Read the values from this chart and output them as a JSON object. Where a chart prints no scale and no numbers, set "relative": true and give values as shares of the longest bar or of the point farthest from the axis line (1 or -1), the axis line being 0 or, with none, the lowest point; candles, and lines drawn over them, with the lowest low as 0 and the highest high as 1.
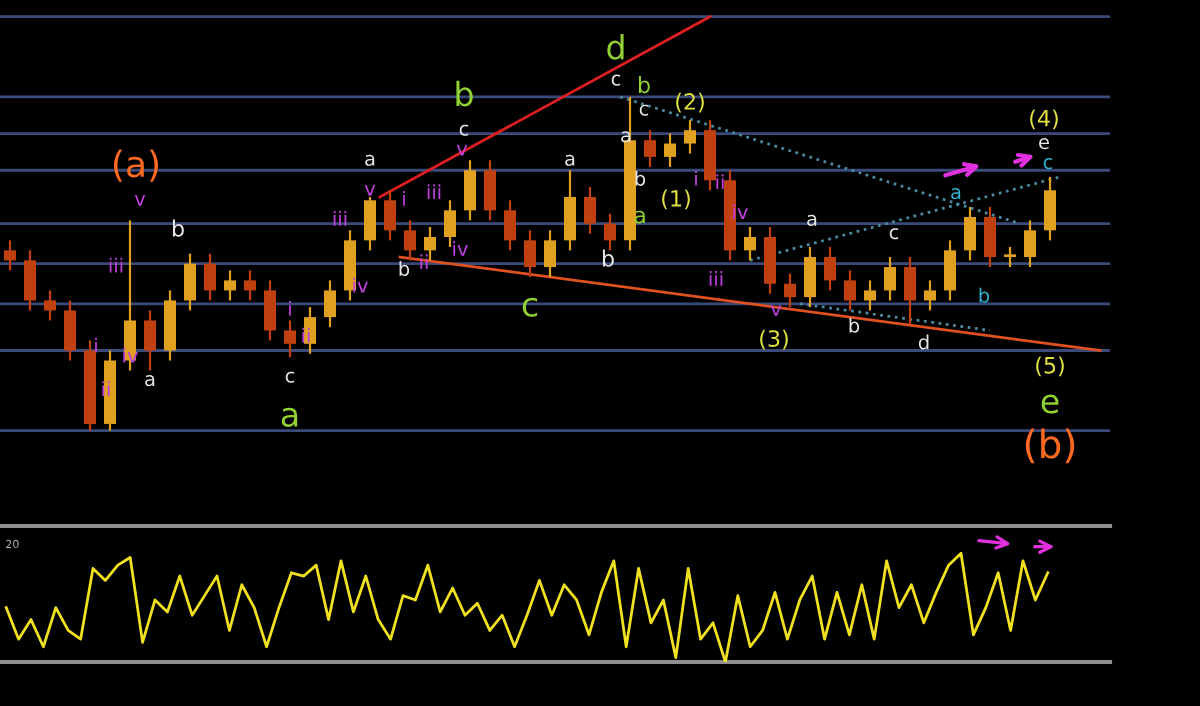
{
  "chart_data": [
    {
      "type": "candlestick",
      "relative": true,
      "colors": [
        "#c04010",
        "#c04010",
        "#c04010",
        "#c04010",
        "#c04010",
        "#e0a020",
        "#e0a020",
        "#c04010",
        "#e0a020",
        "#e0a020",
        "#c04010",
        "#e0a020",
        "#c04010",
        "#c04010",
        "#c04010",
        "#e0a020",
        "#e0a020",
        "#e0a020",
        "#e0a020",
        "#c04010",
        "#c04010",
        "#e0a020",
        "#e0a020",
        "#e0a020",
        "#c04010",
        "#c04010",
        "#c04010",
        "#e0a020",
        "#e0a020",
        "#c04010",
        "#c04010",
        "#e0a020",
        "#c04010",
        "#e0a020",
        "#e0a020",
        "#c04010",
        "#c04010",
        "#e0a020",
        "#c04010",
        "#c04010",
        "#e0a020",
        "#c04010",
        "#c04010",
        "#e0a020",
        "#e0a020",
        "#c04010",
        "#e0a020",
        "#e0a020",
        "#e0a020",
        "#c04010",
        "#e0a020",
        "#e0a020",
        "#e0a020"
      ],
      "categories": [
        null,
        null,
        null,
        null,
        null,
        null,
        null,
        null,
        null,
        null,
        null,
        null,
        null,
        null,
        null,
        null,
        null,
        null,
        null,
        null,
        null,
        null,
        null,
        null,
        null,
        null,
        null,
        null,
        null,
        null,
        null,
        null,
        null,
        null,
        null,
        null,
        null,
        null,
        null,
        null,
        null,
        null,
        null,
        null,
        null,
        null,
        null,
        null,
        null,
        null,
        null,
        null,
        null
      ],
      "ohlc": [
        [
          0.54,
          0.57,
          0.48,
          0.51
        ],
        [
          0.51,
          0.54,
          0.36,
          0.39
        ],
        [
          0.39,
          0.42,
          0.33,
          0.36
        ],
        [
          0.36,
          0.39,
          0.21,
          0.24
        ],
        [
          0.24,
          0.27,
          0,
          0.02
        ],
        [
          0.02,
          0.24,
          0,
          0.21
        ],
        [
          0.21,
          0.63,
          0.18,
          0.33
        ],
        [
          0.33,
          0.36,
          0.18,
          0.24
        ],
        [
          0.24,
          0.42,
          0.21,
          0.39
        ],
        [
          0.39,
          0.53,
          0.36,
          0.5
        ],
        [
          0.5,
          0.53,
          0.39,
          0.42
        ],
        [
          0.42,
          0.48,
          0.39,
          0.45
        ],
        [
          0.45,
          0.48,
          0.39,
          0.42
        ],
        [
          0.42,
          0.45,
          0.27,
          0.3
        ],
        [
          0.3,
          0.33,
          0.22,
          0.26
        ],
        [
          0.26,
          0.37,
          0.23,
          0.34
        ],
        [
          0.34,
          0.45,
          0.31,
          0.42
        ],
        [
          0.42,
          0.6,
          0.39,
          0.57
        ],
        [
          0.57,
          0.7,
          0.54,
          0.69
        ],
        [
          0.69,
          0.72,
          0.57,
          0.6
        ],
        [
          0.6,
          0.63,
          0.51,
          0.54
        ],
        [
          0.54,
          0.61,
          0.51,
          0.58
        ],
        [
          0.58,
          0.69,
          0.55,
          0.66
        ],
        [
          0.66,
          0.81,
          0.63,
          0.78
        ],
        [
          0.78,
          0.81,
          0.63,
          0.66
        ],
        [
          0.66,
          0.69,
          0.54,
          0.57
        ],
        [
          0.57,
          0.6,
          0.46,
          0.49
        ],
        [
          0.49,
          0.6,
          0.46,
          0.57
        ],
        [
          0.57,
          0.78,
          0.54,
          0.7
        ],
        [
          0.7,
          0.73,
          0.59,
          0.62
        ],
        [
          0.62,
          0.65,
          0.54,
          0.57
        ],
        [
          0.57,
          1.0,
          0.54,
          0.87
        ],
        [
          0.87,
          0.9,
          0.79,
          0.82
        ],
        [
          0.82,
          0.89,
          0.79,
          0.86
        ],
        [
          0.86,
          0.93,
          0.83,
          0.9
        ],
        [
          0.9,
          0.93,
          0.72,
          0.75
        ],
        [
          0.75,
          0.78,
          0.51,
          0.54
        ],
        [
          0.54,
          0.61,
          0.51,
          0.58
        ],
        [
          0.58,
          0.61,
          0.41,
          0.44
        ],
        [
          0.44,
          0.47,
          0.37,
          0.4
        ],
        [
          0.4,
          0.55,
          0.37,
          0.52
        ],
        [
          0.52,
          0.55,
          0.42,
          0.45
        ],
        [
          0.45,
          0.48,
          0.36,
          0.39
        ],
        [
          0.39,
          0.45,
          0.36,
          0.42
        ],
        [
          0.42,
          0.52,
          0.39,
          0.49
        ],
        [
          0.49,
          0.52,
          0.32,
          0.39
        ],
        [
          0.39,
          0.45,
          0.36,
          0.42
        ],
        [
          0.42,
          0.57,
          0.39,
          0.54
        ],
        [
          0.54,
          0.67,
          0.51,
          0.64
        ],
        [
          0.64,
          0.67,
          0.49,
          0.52
        ],
        [
          0.52,
          0.55,
          0.49,
          0.52
        ],
        [
          0.52,
          0.63,
          0.49,
          0.6
        ],
        [
          0.6,
          0.76,
          0.57,
          0.72
        ]
      ],
      "ref_lines": [
        {
          "axis": "y",
          "value": 1.24,
          "label": null,
          "color": "#3a4a7a"
        },
        {
          "axis": "y",
          "value": 1.0,
          "label": null,
          "color": "#3a4a7a"
        },
        {
          "axis": "y",
          "value": 0.89,
          "label": null,
          "color": "#3a4a7a"
        },
        {
          "axis": "y",
          "value": 0.78,
          "label": null,
          "color": "#3a4a7a"
        },
        {
          "axis": "y",
          "value": 0.62,
          "label": null,
          "color": "#3a4a7a"
        },
        {
          "axis": "y",
          "value": 0.5,
          "label": null,
          "color": "#3a4a7a"
        },
        {
          "axis": "y",
          "value": 0.38,
          "label": null,
          "color": "#3a4a7a"
        },
        {
          "axis": "y",
          "value": 0.24,
          "label": null,
          "color": "#3a4a7a"
        },
        {
          "axis": "y",
          "value": 0,
          "label": null,
          "color": "#3a4a7a"
        }
      ],
      "annotations": [
        "(a)",
        "v",
        "iii",
        "iv",
        "i",
        "ii",
        "a",
        "b",
        "c",
        "a",
        "i",
        "ii",
        "iii",
        "iv",
        "a",
        "v",
        "i",
        "b",
        "ii",
        "iii",
        "iv",
        "c",
        "v",
        "b",
        "a",
        "c",
        "d",
        "c",
        "b",
        "c",
        "a",
        "b",
        "a",
        "b",
        "(1)",
        "(2)",
        "i",
        "ii",
        "iv",
        "iii",
        "v",
        "(3)",
        "a",
        "b",
        "c",
        "d",
        "a",
        "b",
        "(4)",
        "e",
        "c",
        "(5)",
        "e",
        "(b)"
      ]
    },
    {
      "type": "line",
      "relative": true,
      "annotations": [
        "20"
      ],
      "categories": [
        null,
        null,
        null,
        null,
        null,
        null,
        null,
        null,
        null,
        null,
        null,
        null,
        null,
        null,
        null,
        null,
        null,
        null,
        null,
        null,
        null,
        null,
        null,
        null,
        null,
        null,
        null,
        null,
        null,
        null,
        null,
        null,
        null,
        null,
        null,
        null,
        null,
        null,
        null,
        null,
        null,
        null,
        null,
        null,
        null,
        null,
        null,
        null,
        null,
        null,
        null,
        null,
        null,
        null,
        null,
        null,
        null,
        null,
        null,
        null,
        null,
        null,
        null,
        null,
        null,
        null,
        null,
        null,
        null,
        null,
        null,
        null,
        null,
        null,
        null,
        null,
        null,
        null,
        null,
        null,
        null,
        null,
        null,
        null,
        null
      ],
      "series": [
        {
          "color": "#f0e020",
          "values": [
            0.5,
            0.21,
            0.39,
            0.14,
            0.5,
            0.29,
            0.21,
            0.86,
            0.75,
            0.89,
            0.96,
            0.18,
            0.57,
            0.46,
            0.79,
            0.43,
            0.61,
            0.79,
            0.29,
            0.71,
            0.5,
            0.14,
            0.5,
            0.82,
            0.79,
            0.89,
            0.39,
            0.93,
            0.46,
            0.79,
            0.39,
            0.21,
            0.61,
            0.57,
            0.89,
            0.46,
            0.68,
            0.43,
            0.54,
            0.29,
            0.43,
            0.14,
            0.43,
            0.75,
            0.43,
            0.71,
            0.57,
            0.25,
            0.64,
            0.93,
            0.14,
            0.86,
            0.36,
            0.57,
            0.04,
            0.86,
            0.21,
            0.36,
            0,
            0.61,
            0.14,
            0.29,
            0.64,
            0.21,
            0.57,
            0.79,
            0.21,
            0.64,
            0.25,
            0.71,
            0.21,
            0.93,
            0.5,
            0.71,
            0.36,
            0.64,
            0.89,
            1.0,
            0.25,
            0.5,
            0.82,
            0.29,
            0.93,
            0.57,
            0.82
          ]
        }
      ]
    }
  ]
}
